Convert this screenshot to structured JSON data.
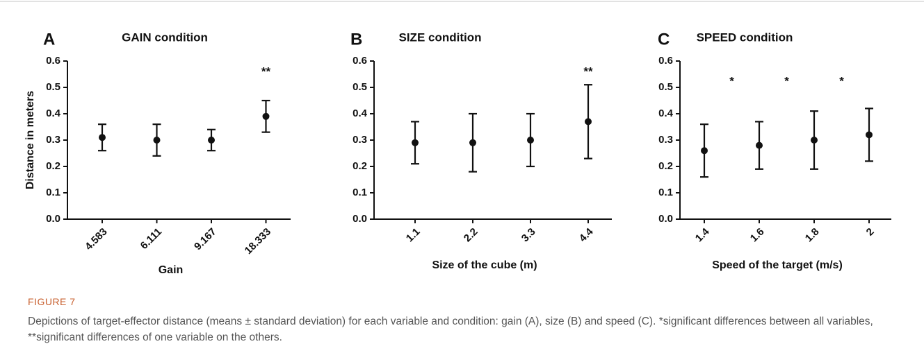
{
  "chart_data": [
    {
      "type": "errorbar",
      "panel": "A",
      "title": "GAIN condition",
      "xlabel": "Gain",
      "ylabel": "Distance in meters",
      "categories": [
        "4.583",
        "6.111",
        "9.167",
        "18.333"
      ],
      "values": [
        0.31,
        0.3,
        0.3,
        0.39
      ],
      "errors": [
        0.05,
        0.06,
        0.04,
        0.06
      ],
      "color": "#111111",
      "ylim": [
        0,
        0.6
      ],
      "yticks": [
        {
          "value": 0,
          "label": "0.0"
        },
        0.1,
        0.2,
        0.3,
        0.4,
        0.5,
        0.6
      ],
      "annotations": [
        "**"
      ]
    },
    {
      "type": "errorbar",
      "panel": "B",
      "title": "SIZE condition",
      "xlabel": "Size of the cube (m)",
      "categories": [
        "1.1",
        "2.2",
        "3.3",
        "4.4"
      ],
      "values": [
        0.29,
        0.29,
        0.3,
        0.37
      ],
      "errors": [
        0.08,
        0.11,
        0.1,
        0.14
      ],
      "color": "#111111",
      "ylim": [
        0,
        0.6
      ],
      "yticks": [
        {
          "value": 0,
          "label": "0.0"
        },
        0.1,
        0.2,
        0.3,
        0.4,
        0.5,
        0.6
      ],
      "annotations": [
        "**"
      ]
    },
    {
      "type": "errorbar",
      "panel": "C",
      "title": "SPEED condition",
      "xlabel": "Speed of the target (m/s)",
      "categories": [
        "1.4",
        "1.6",
        "1.8",
        "2"
      ],
      "values": [
        0.26,
        0.28,
        0.3,
        0.32
      ],
      "errors": [
        0.1,
        0.09,
        0.11,
        0.1
      ],
      "color": "#111111",
      "ylim": [
        0,
        0.6
      ],
      "yticks": [
        {
          "value": 0,
          "label": "0.0"
        },
        0.1,
        0.2,
        0.3,
        0.4,
        0.5,
        0.6
      ],
      "annotations": [
        "*",
        "*",
        "*"
      ]
    }
  ],
  "figure": {
    "label": "FIGURE 7",
    "caption": "Depictions of target-effector distance (means ± standard deviation) for each variable and condition: gain (A), size (B) and speed (C). *significant differences between all variables, **significant differences of one variable on the others."
  }
}
